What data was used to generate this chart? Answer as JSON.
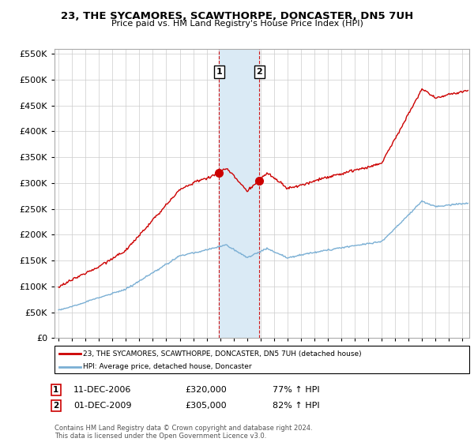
{
  "title": "23, THE SYCAMORES, SCAWTHORPE, DONCASTER, DN5 7UH",
  "subtitle": "Price paid vs. HM Land Registry's House Price Index (HPI)",
  "legend_line1": "23, THE SYCAMORES, SCAWTHORPE, DONCASTER, DN5 7UH (detached house)",
  "legend_line2": "HPI: Average price, detached house, Doncaster",
  "annotation1_date": "11-DEC-2006",
  "annotation1_price": "£320,000",
  "annotation1_hpi": "77% ↑ HPI",
  "annotation1_value": 320000,
  "annotation1_year": 2006.92,
  "annotation2_date": "01-DEC-2009",
  "annotation2_price": "£305,000",
  "annotation2_hpi": "82% ↑ HPI",
  "annotation2_value": 305000,
  "annotation2_year": 2009.92,
  "footer": "Contains HM Land Registry data © Crown copyright and database right 2024.\nThis data is licensed under the Open Government Licence v3.0.",
  "red_color": "#cc0000",
  "blue_color": "#7aafd4",
  "shade_color": "#daeaf5",
  "grid_color": "#cccccc",
  "background_color": "#ffffff",
  "ylim_min": 0,
  "ylim_max": 560000,
  "xlim_min": 1994.7,
  "xlim_max": 2025.5
}
